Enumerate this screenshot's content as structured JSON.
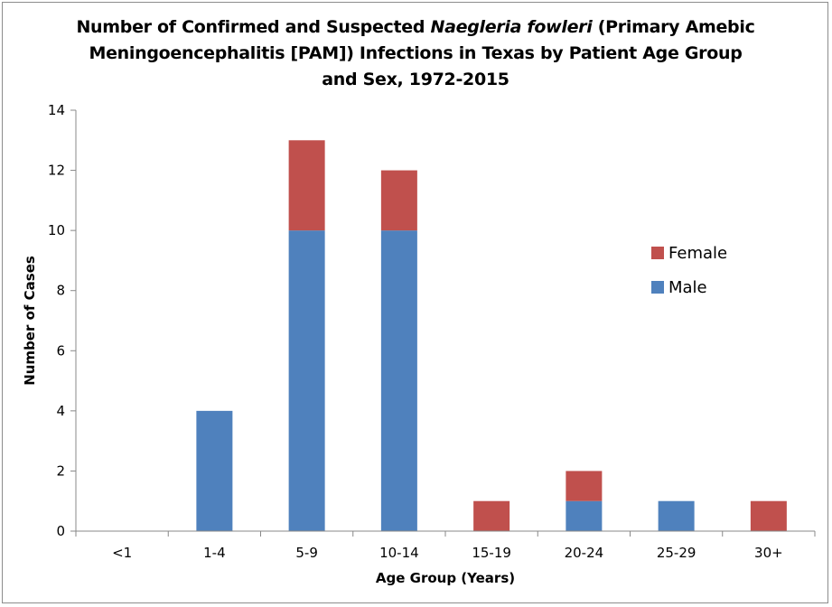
{
  "title": {
    "line1_pre": "Number of Confirmed and Suspected ",
    "line1_italic": "Naegleria fowleri",
    "line1_post": " (Primary Amebic",
    "line2": "Meningoencephalitis [PAM]) Infections in Texas by Patient Age Group",
    "line3": "and Sex, 1972-2015"
  },
  "colors": {
    "male": "#4F81BD",
    "female": "#C0504D",
    "axis": "#888888"
  },
  "chart_data": {
    "type": "bar",
    "stacked": true,
    "title": "Number of Confirmed and Suspected Naegleria fowleri (Primary Amebic Meningoencephalitis [PAM]) Infections in Texas by Patient Age Group and Sex, 1972-2015",
    "xlabel": "Age Group (Years)",
    "ylabel": "Number of Cases",
    "categories": [
      "<1",
      "1-4",
      "5-9",
      "10-14",
      "15-19",
      "20-24",
      "25-29",
      "30+"
    ],
    "series": [
      {
        "name": "Male",
        "values": [
          0,
          4,
          10,
          10,
          0,
          1,
          1,
          0
        ]
      },
      {
        "name": "Female",
        "values": [
          0,
          0,
          3,
          2,
          1,
          1,
          0,
          1
        ]
      }
    ],
    "ylim": [
      0,
      14
    ],
    "yticks": [
      0,
      2,
      4,
      6,
      8,
      10,
      12,
      14
    ],
    "grid": false,
    "legend": {
      "position": "right",
      "entries": [
        "Female",
        "Male"
      ]
    }
  }
}
